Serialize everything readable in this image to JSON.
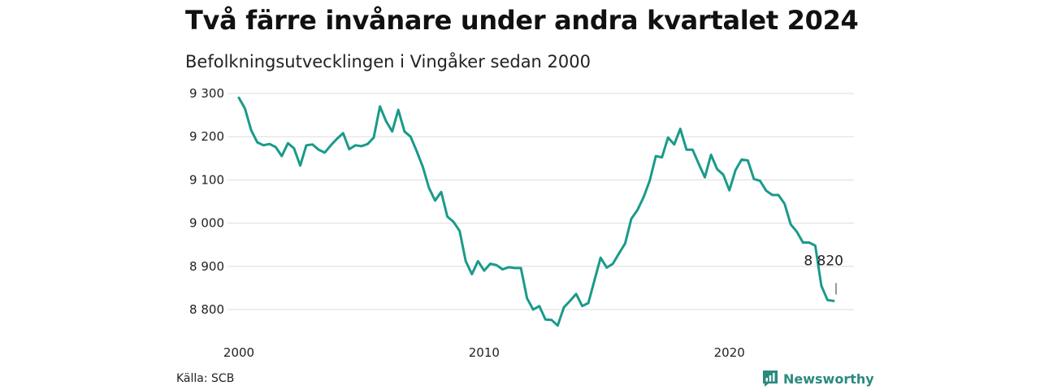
{
  "header": {
    "title": "Två färre invånare under andra kvartalet 2024",
    "subtitle": "Befolkningsutvecklingen i Vingåker sedan 2000"
  },
  "footer": {
    "source": "Källa: SCB",
    "brand": "Newsworthy",
    "brand_icon": "newsworthy-logo-icon"
  },
  "colors": {
    "line": "#1a9a8a",
    "grid": "#dddddd",
    "brand": "#2a8a80"
  },
  "chart_data": {
    "type": "line",
    "title": "Två färre invånare under andra kvartalet 2024",
    "subtitle": "Befolkningsutvecklingen i Vingåker sedan 2000",
    "xlabel": "",
    "ylabel": "",
    "x_ticks": [
      2000,
      2010,
      2020
    ],
    "y_ticks": [
      8800,
      8900,
      9000,
      9100,
      9200,
      9300
    ],
    "y_tick_labels": [
      "8 800",
      "8 900",
      "9 000",
      "9 100",
      "9 200",
      "9 300"
    ],
    "xlim": [
      2000,
      2024.25
    ],
    "ylim": [
      8760,
      9300
    ],
    "grid": true,
    "legend": "none",
    "annotation": {
      "label": "8 820",
      "x": 2024.25,
      "y": 8820
    },
    "series": [
      {
        "x": [
          2000.0,
          2000.25,
          2000.5,
          2000.75,
          2001.0,
          2001.25,
          2001.5,
          2001.75,
          2002.0,
          2002.25,
          2002.5,
          2002.75,
          2003.0,
          2003.25,
          2003.5,
          2003.75,
          2004.0,
          2004.25,
          2004.5,
          2004.75,
          2005.0,
          2005.25,
          2005.5,
          2005.75,
          2006.0,
          2006.25,
          2006.5,
          2006.75,
          2007.0,
          2007.25,
          2007.5,
          2007.75,
          2008.0,
          2008.25,
          2008.5,
          2008.75,
          2009.0,
          2009.25,
          2009.5,
          2009.75,
          2010.0,
          2010.25,
          2010.5,
          2010.75,
          2011.0,
          2011.25,
          2011.5,
          2011.75,
          2012.0,
          2012.25,
          2012.5,
          2012.75,
          2013.0,
          2013.25,
          2013.5,
          2013.75,
          2014.0,
          2014.25,
          2014.5,
          2014.75,
          2015.0,
          2015.25,
          2015.5,
          2015.75,
          2016.0,
          2016.25,
          2016.5,
          2016.75,
          2017.0,
          2017.25,
          2017.5,
          2017.75,
          2018.0,
          2018.25,
          2018.5,
          2018.75,
          2019.0,
          2019.25,
          2019.5,
          2019.75,
          2020.0,
          2020.25,
          2020.5,
          2020.75,
          2021.0,
          2021.25,
          2021.5,
          2021.75,
          2022.0,
          2022.25,
          2022.5,
          2022.75,
          2023.0,
          2023.25,
          2023.5,
          2023.75,
          2024.0,
          2024.25
        ],
        "values": [
          9290,
          9265,
          9215,
          9187,
          9180,
          9183,
          9176,
          9155,
          9185,
          9173,
          9133,
          9180,
          9182,
          9170,
          9163,
          9180,
          9195,
          9208,
          9171,
          9180,
          9178,
          9183,
          9198,
          9270,
          9236,
          9212,
          9262,
          9212,
          9200,
          9167,
          9130,
          9082,
          9052,
          9072,
          9015,
          9003,
          8982,
          8912,
          8882,
          8912,
          8890,
          8906,
          8903,
          8893,
          8898,
          8896,
          8896,
          8826,
          8800,
          8808,
          8777,
          8776,
          8763,
          8805,
          8820,
          8836,
          8808,
          8815,
          8868,
          8920,
          8897,
          8906,
          8930,
          8953,
          9010,
          9030,
          9060,
          9098,
          9155,
          9152,
          9198,
          9182,
          9218,
          9170,
          9170,
          9137,
          9106,
          9158,
          9125,
          9112,
          9076,
          9123,
          9147,
          9145,
          9102,
          9098,
          9075,
          9065,
          9065,
          9045,
          8997,
          8980,
          8955,
          8955,
          8948,
          8855,
          8822,
          8820
        ]
      }
    ]
  }
}
